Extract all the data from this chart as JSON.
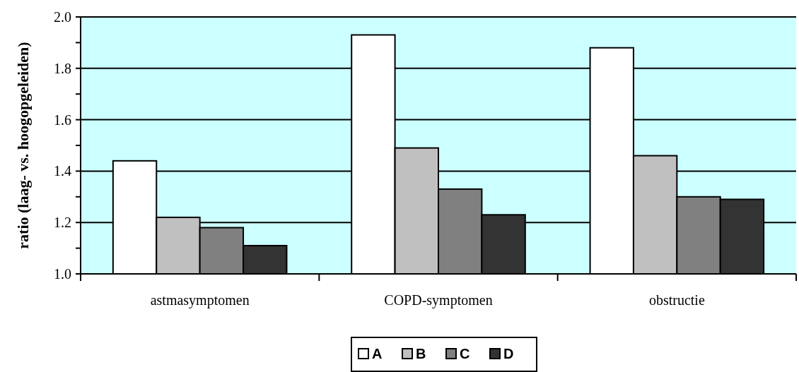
{
  "chart_data": {
    "type": "bar",
    "ylabel": "ratio (laag- vs. hoogopgeleiden)",
    "categories": [
      "astmasymptomen",
      "COPD-symptomen",
      "obstructie"
    ],
    "series": [
      {
        "name": "A",
        "color": "#ffffff",
        "values": [
          1.44,
          1.93,
          1.88
        ]
      },
      {
        "name": "B",
        "color": "#c0c0c0",
        "values": [
          1.22,
          1.49,
          1.46
        ]
      },
      {
        "name": "C",
        "color": "#808080",
        "values": [
          1.18,
          1.33,
          1.3
        ]
      },
      {
        "name": "D",
        "color": "#333333",
        "values": [
          1.11,
          1.23,
          1.29
        ]
      }
    ],
    "ylim": [
      1.0,
      2.0
    ],
    "yticks": [
      {
        "value": 1.0,
        "label": "1.0"
      },
      {
        "value": 1.1,
        "label": null
      },
      {
        "value": 1.2,
        "label": "1.2"
      },
      {
        "value": 1.3,
        "label": null
      },
      {
        "value": 1.4,
        "label": "1.4"
      },
      {
        "value": 1.5,
        "label": null
      },
      {
        "value": 1.6,
        "label": "1.6"
      },
      {
        "value": 1.7,
        "label": null
      },
      {
        "value": 1.8,
        "label": "1.8"
      },
      {
        "value": 1.9,
        "label": null
      },
      {
        "value": 2.0,
        "label": "2.0"
      }
    ],
    "grid": "y",
    "legend": "bottom"
  }
}
